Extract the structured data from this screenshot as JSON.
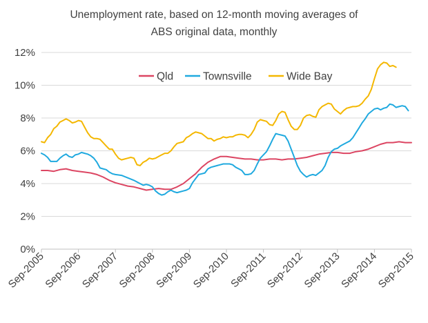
{
  "chart_data": {
    "type": "line",
    "title_lines": [
      "Unemployment rate, based on 12-month moving averages of",
      "ABS original data, monthly"
    ],
    "ylim": [
      0,
      12
    ],
    "yticks": [
      0,
      2,
      4,
      6,
      8,
      10,
      12
    ],
    "ytick_labels": [
      "0%",
      "2%",
      "4%",
      "6%",
      "8%",
      "10%",
      "12%"
    ],
    "xticks": [
      0,
      12,
      24,
      36,
      48,
      60,
      72,
      84,
      96,
      108,
      120
    ],
    "xtick_labels": [
      "Sep-2005",
      "Sep-2006",
      "Sep-2007",
      "Sep-2008",
      "Sep-2009",
      "Sep-2010",
      "Sep-2011",
      "Sep-2012",
      "Sep-2013",
      "Sep-2014",
      "Sep-2015"
    ],
    "xlabel": "",
    "ylabel": "",
    "legend_position": "top-center",
    "series": [
      {
        "name": "Qld",
        "color": "#dc4562",
        "points": [
          [
            0,
            4.8
          ],
          [
            2,
            4.8
          ],
          [
            4,
            4.75
          ],
          [
            6,
            4.85
          ],
          [
            8,
            4.9
          ],
          [
            10,
            4.8
          ],
          [
            12,
            4.75
          ],
          [
            14,
            4.7
          ],
          [
            16,
            4.65
          ],
          [
            18,
            4.55
          ],
          [
            20,
            4.4
          ],
          [
            22,
            4.2
          ],
          [
            24,
            4.05
          ],
          [
            26,
            3.95
          ],
          [
            28,
            3.85
          ],
          [
            30,
            3.8
          ],
          [
            32,
            3.7
          ],
          [
            34,
            3.6
          ],
          [
            36,
            3.65
          ],
          [
            38,
            3.7
          ],
          [
            40,
            3.65
          ],
          [
            42,
            3.65
          ],
          [
            44,
            3.8
          ],
          [
            46,
            4.0
          ],
          [
            48,
            4.3
          ],
          [
            50,
            4.6
          ],
          [
            52,
            5.0
          ],
          [
            54,
            5.3
          ],
          [
            56,
            5.5
          ],
          [
            58,
            5.65
          ],
          [
            60,
            5.65
          ],
          [
            62,
            5.6
          ],
          [
            64,
            5.55
          ],
          [
            66,
            5.5
          ],
          [
            68,
            5.5
          ],
          [
            70,
            5.45
          ],
          [
            72,
            5.45
          ],
          [
            74,
            5.5
          ],
          [
            76,
            5.5
          ],
          [
            78,
            5.45
          ],
          [
            80,
            5.5
          ],
          [
            82,
            5.5
          ],
          [
            84,
            5.55
          ],
          [
            86,
            5.6
          ],
          [
            88,
            5.7
          ],
          [
            90,
            5.8
          ],
          [
            92,
            5.85
          ],
          [
            94,
            5.9
          ],
          [
            96,
            5.9
          ],
          [
            98,
            5.85
          ],
          [
            100,
            5.85
          ],
          [
            102,
            5.95
          ],
          [
            104,
            6.0
          ],
          [
            106,
            6.1
          ],
          [
            108,
            6.25
          ],
          [
            110,
            6.4
          ],
          [
            112,
            6.5
          ],
          [
            114,
            6.5
          ],
          [
            116,
            6.55
          ],
          [
            118,
            6.5
          ],
          [
            120,
            6.5
          ]
        ]
      },
      {
        "name": "Townsville",
        "color": "#1fa9df",
        "points": [
          [
            0,
            5.85
          ],
          [
            1,
            5.75
          ],
          [
            2,
            5.6
          ],
          [
            3,
            5.35
          ],
          [
            5,
            5.35
          ],
          [
            6,
            5.55
          ],
          [
            7,
            5.7
          ],
          [
            8,
            5.8
          ],
          [
            9,
            5.65
          ],
          [
            10,
            5.6
          ],
          [
            11,
            5.75
          ],
          [
            12,
            5.8
          ],
          [
            13,
            5.9
          ],
          [
            14,
            5.85
          ],
          [
            15,
            5.8
          ],
          [
            16,
            5.7
          ],
          [
            17,
            5.55
          ],
          [
            18,
            5.3
          ],
          [
            19,
            4.95
          ],
          [
            20,
            4.9
          ],
          [
            21,
            4.85
          ],
          [
            22,
            4.7
          ],
          [
            23,
            4.6
          ],
          [
            24,
            4.55
          ],
          [
            26,
            4.5
          ],
          [
            28,
            4.35
          ],
          [
            30,
            4.2
          ],
          [
            32,
            4.0
          ],
          [
            33,
            3.9
          ],
          [
            34,
            3.95
          ],
          [
            35,
            3.9
          ],
          [
            36,
            3.8
          ],
          [
            37,
            3.55
          ],
          [
            38,
            3.4
          ],
          [
            39,
            3.3
          ],
          [
            40,
            3.35
          ],
          [
            41,
            3.5
          ],
          [
            42,
            3.6
          ],
          [
            43,
            3.5
          ],
          [
            44,
            3.45
          ],
          [
            45,
            3.5
          ],
          [
            46,
            3.55
          ],
          [
            47,
            3.6
          ],
          [
            48,
            3.7
          ],
          [
            49,
            4.05
          ],
          [
            50,
            4.3
          ],
          [
            51,
            4.55
          ],
          [
            52,
            4.6
          ],
          [
            53,
            4.65
          ],
          [
            54,
            4.9
          ],
          [
            55,
            5.0
          ],
          [
            56,
            5.05
          ],
          [
            57,
            5.1
          ],
          [
            58,
            5.15
          ],
          [
            59,
            5.2
          ],
          [
            60,
            5.2
          ],
          [
            61,
            5.2
          ],
          [
            62,
            5.15
          ],
          [
            63,
            5.0
          ],
          [
            64,
            4.9
          ],
          [
            65,
            4.8
          ],
          [
            66,
            4.55
          ],
          [
            67,
            4.55
          ],
          [
            68,
            4.6
          ],
          [
            69,
            4.8
          ],
          [
            70,
            5.2
          ],
          [
            71,
            5.55
          ],
          [
            72,
            5.75
          ],
          [
            73,
            5.95
          ],
          [
            74,
            6.3
          ],
          [
            75,
            6.7
          ],
          [
            76,
            7.05
          ],
          [
            77,
            7.0
          ],
          [
            78,
            6.95
          ],
          [
            79,
            6.9
          ],
          [
            80,
            6.6
          ],
          [
            81,
            6.1
          ],
          [
            82,
            5.6
          ],
          [
            83,
            5.1
          ],
          [
            84,
            4.75
          ],
          [
            85,
            4.55
          ],
          [
            86,
            4.4
          ],
          [
            87,
            4.5
          ],
          [
            88,
            4.55
          ],
          [
            89,
            4.5
          ],
          [
            90,
            4.65
          ],
          [
            91,
            4.8
          ],
          [
            92,
            5.1
          ],
          [
            93,
            5.6
          ],
          [
            94,
            5.95
          ],
          [
            95,
            6.1
          ],
          [
            96,
            6.15
          ],
          [
            97,
            6.3
          ],
          [
            98,
            6.4
          ],
          [
            99,
            6.5
          ],
          [
            100,
            6.6
          ],
          [
            101,
            6.8
          ],
          [
            102,
            7.1
          ],
          [
            103,
            7.4
          ],
          [
            104,
            7.7
          ],
          [
            105,
            7.95
          ],
          [
            106,
            8.25
          ],
          [
            107,
            8.4
          ],
          [
            108,
            8.55
          ],
          [
            109,
            8.6
          ],
          [
            110,
            8.5
          ],
          [
            111,
            8.6
          ],
          [
            112,
            8.65
          ],
          [
            113,
            8.85
          ],
          [
            114,
            8.8
          ],
          [
            115,
            8.65
          ],
          [
            116,
            8.7
          ],
          [
            117,
            8.75
          ],
          [
            118,
            8.7
          ],
          [
            119,
            8.45
          ]
        ]
      },
      {
        "name": "Wide Bay",
        "color": "#f4b700",
        "points": [
          [
            0,
            6.55
          ],
          [
            1,
            6.5
          ],
          [
            2,
            6.8
          ],
          [
            3,
            7.0
          ],
          [
            4,
            7.35
          ],
          [
            5,
            7.5
          ],
          [
            6,
            7.75
          ],
          [
            7,
            7.85
          ],
          [
            8,
            7.95
          ],
          [
            9,
            7.85
          ],
          [
            10,
            7.7
          ],
          [
            11,
            7.75
          ],
          [
            12,
            7.85
          ],
          [
            13,
            7.8
          ],
          [
            14,
            7.45
          ],
          [
            15,
            7.1
          ],
          [
            16,
            6.85
          ],
          [
            17,
            6.75
          ],
          [
            18,
            6.75
          ],
          [
            19,
            6.7
          ],
          [
            20,
            6.5
          ],
          [
            21,
            6.3
          ],
          [
            22,
            6.1
          ],
          [
            23,
            6.1
          ],
          [
            24,
            5.8
          ],
          [
            25,
            5.55
          ],
          [
            26,
            5.45
          ],
          [
            27,
            5.5
          ],
          [
            28,
            5.55
          ],
          [
            29,
            5.6
          ],
          [
            30,
            5.55
          ],
          [
            31,
            5.15
          ],
          [
            32,
            5.1
          ],
          [
            33,
            5.3
          ],
          [
            34,
            5.4
          ],
          [
            35,
            5.55
          ],
          [
            36,
            5.5
          ],
          [
            37,
            5.55
          ],
          [
            38,
            5.65
          ],
          [
            39,
            5.75
          ],
          [
            40,
            5.85
          ],
          [
            41,
            5.85
          ],
          [
            42,
            6.0
          ],
          [
            43,
            6.25
          ],
          [
            44,
            6.45
          ],
          [
            45,
            6.5
          ],
          [
            46,
            6.55
          ],
          [
            47,
            6.8
          ],
          [
            48,
            6.9
          ],
          [
            49,
            7.05
          ],
          [
            50,
            7.15
          ],
          [
            51,
            7.1
          ],
          [
            52,
            7.05
          ],
          [
            53,
            6.9
          ],
          [
            54,
            6.75
          ],
          [
            55,
            6.75
          ],
          [
            56,
            6.6
          ],
          [
            57,
            6.7
          ],
          [
            58,
            6.75
          ],
          [
            59,
            6.85
          ],
          [
            60,
            6.8
          ],
          [
            61,
            6.85
          ],
          [
            62,
            6.85
          ],
          [
            63,
            6.95
          ],
          [
            64,
            7.0
          ],
          [
            65,
            7.0
          ],
          [
            66,
            6.95
          ],
          [
            67,
            6.8
          ],
          [
            68,
            7.0
          ],
          [
            69,
            7.3
          ],
          [
            70,
            7.75
          ],
          [
            71,
            7.9
          ],
          [
            72,
            7.85
          ],
          [
            73,
            7.8
          ],
          [
            74,
            7.6
          ],
          [
            75,
            7.55
          ],
          [
            76,
            7.85
          ],
          [
            77,
            8.25
          ],
          [
            78,
            8.4
          ],
          [
            79,
            8.35
          ],
          [
            80,
            7.9
          ],
          [
            81,
            7.5
          ],
          [
            82,
            7.3
          ],
          [
            83,
            7.3
          ],
          [
            84,
            7.55
          ],
          [
            85,
            8.0
          ],
          [
            86,
            8.15
          ],
          [
            87,
            8.2
          ],
          [
            88,
            8.1
          ],
          [
            89,
            8.05
          ],
          [
            90,
            8.5
          ],
          [
            91,
            8.7
          ],
          [
            92,
            8.8
          ],
          [
            93,
            8.9
          ],
          [
            94,
            8.85
          ],
          [
            95,
            8.55
          ],
          [
            96,
            8.4
          ],
          [
            97,
            8.25
          ],
          [
            98,
            8.45
          ],
          [
            99,
            8.6
          ],
          [
            100,
            8.65
          ],
          [
            101,
            8.7
          ],
          [
            102,
            8.7
          ],
          [
            103,
            8.75
          ],
          [
            104,
            8.9
          ],
          [
            105,
            9.15
          ],
          [
            106,
            9.35
          ],
          [
            107,
            9.75
          ],
          [
            108,
            10.4
          ],
          [
            109,
            11.0
          ],
          [
            110,
            11.25
          ],
          [
            111,
            11.4
          ],
          [
            112,
            11.35
          ],
          [
            113,
            11.15
          ],
          [
            114,
            11.2
          ],
          [
            115,
            11.1
          ]
        ]
      }
    ]
  }
}
